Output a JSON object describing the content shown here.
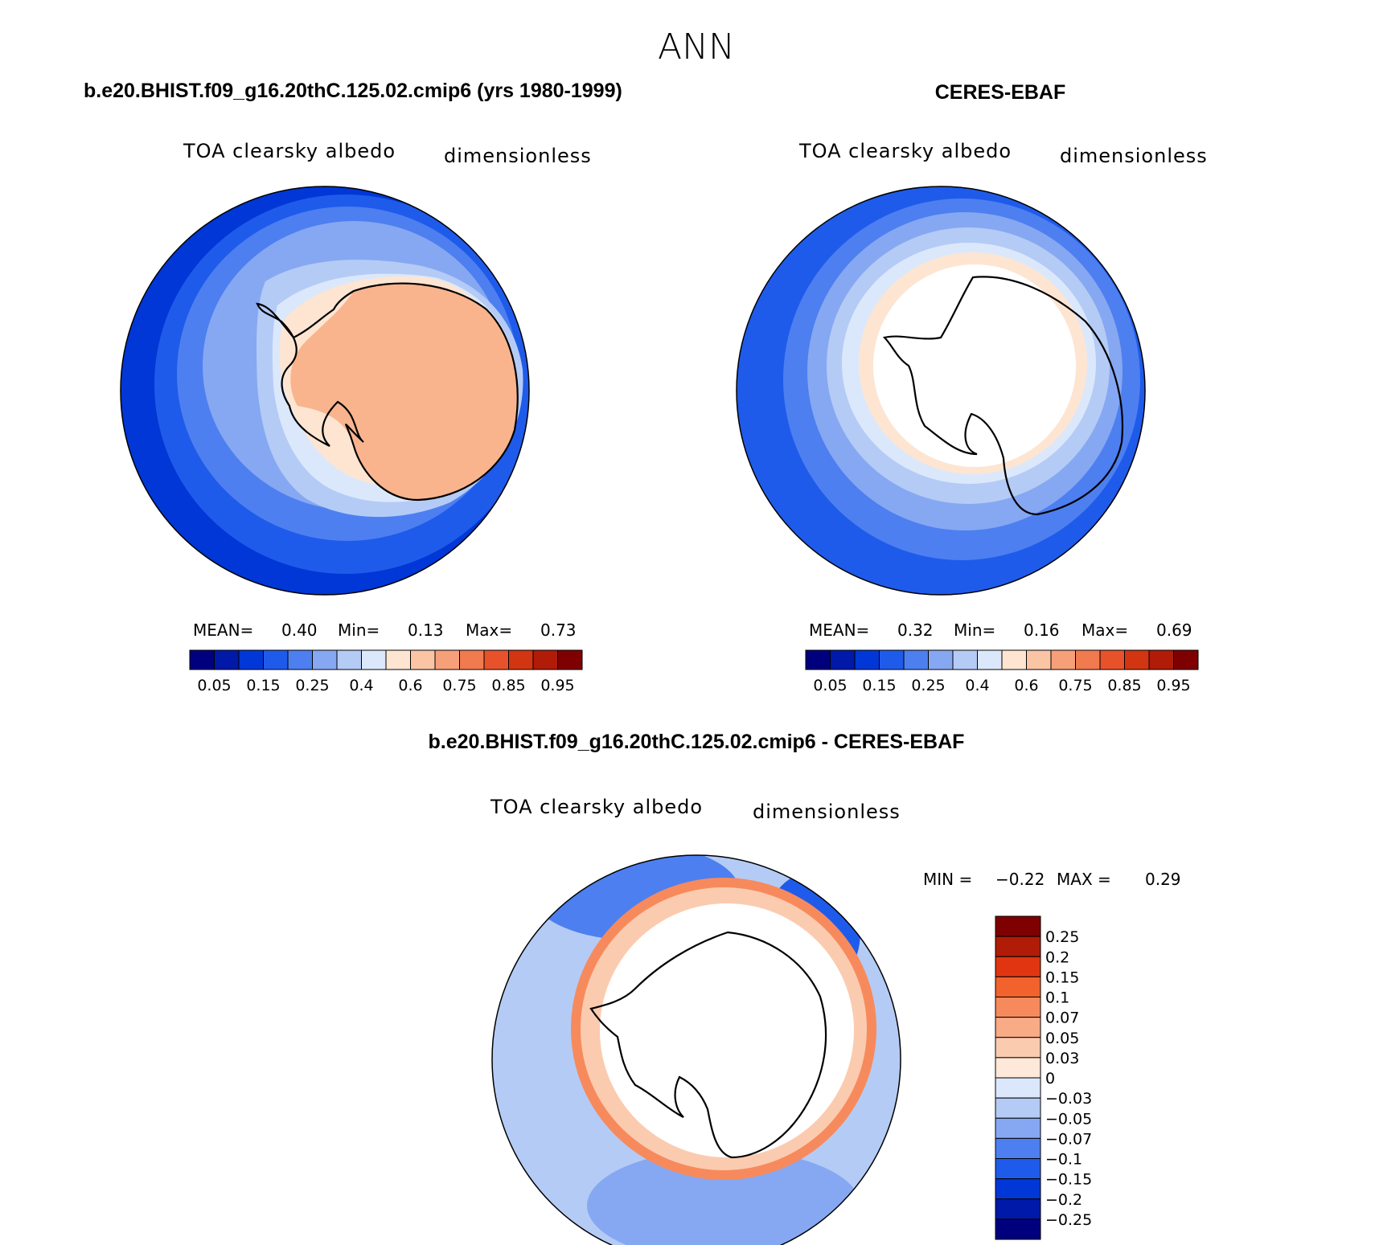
{
  "page_title": "ANN",
  "chart_data": [
    {
      "type": "heatmap",
      "projection": "south-polar-stereographic",
      "title": "b.e20.BHIST.f09_g16.20thC.125.02.cmip6 (yrs 1980-1999)",
      "variable": "TOA clearsky albedo",
      "units": "dimensionless",
      "stats": {
        "mean_label": "MEAN=",
        "mean": "0.40",
        "min_label": "Min=",
        "min": "0.13",
        "max_label": "Max=",
        "max": "0.73"
      },
      "colorbar_ticks": [
        "0.05",
        "0.15",
        "0.25",
        "0.4",
        "0.6",
        "0.75",
        "0.85",
        "0.95"
      ],
      "colorbar_colors": [
        "#00007f",
        "#0019a8",
        "#0037d6",
        "#1f5bea",
        "#4d7ff0",
        "#86a8f2",
        "#b4cbf6",
        "#dbe8fb",
        "#fde5d2",
        "#fbc4a5",
        "#f6a07a",
        "#f27a4f",
        "#e8522a",
        "#d23511",
        "#b01c07",
        "#7f0000"
      ]
    },
    {
      "type": "heatmap",
      "projection": "south-polar-stereographic",
      "title": "CERES-EBAF",
      "variable": "TOA clearsky albedo",
      "units": "dimensionless",
      "stats": {
        "mean_label": "MEAN=",
        "mean": "0.32",
        "min_label": "Min=",
        "min": "0.16",
        "max_label": "Max=",
        "max": "0.69"
      },
      "colorbar_ticks": [
        "0.05",
        "0.15",
        "0.25",
        "0.4",
        "0.6",
        "0.75",
        "0.85",
        "0.95"
      ],
      "colorbar_colors": [
        "#00007f",
        "#0019a8",
        "#0037d6",
        "#1f5bea",
        "#4d7ff0",
        "#86a8f2",
        "#b4cbf6",
        "#dbe8fb",
        "#fde5d2",
        "#fbc4a5",
        "#f6a07a",
        "#f27a4f",
        "#e8522a",
        "#d23511",
        "#b01c07",
        "#7f0000"
      ]
    },
    {
      "type": "heatmap",
      "projection": "south-polar-stereographic",
      "title": "b.e20.BHIST.f09_g16.20thC.125.02.cmip6 - CERES-EBAF",
      "variable": "TOA clearsky albedo",
      "units": "dimensionless",
      "stats": {
        "min_label": "MIN =",
        "min": "−0.22",
        "max_label": "MAX =",
        "max": "0.29"
      },
      "colorbar_ticks": [
        "0.25",
        "0.2",
        "0.15",
        "0.1",
        "0.07",
        "0.05",
        "0.03",
        "0",
        "−0.03",
        "−0.05",
        "−0.07",
        "−0.1",
        "−0.15",
        "−0.2",
        "−0.25"
      ],
      "colorbar_colors": [
        "#7f0000",
        "#b01c07",
        "#e03510",
        "#f2622d",
        "#f78a5c",
        "#f9ab86",
        "#fbcbb0",
        "#fde8da",
        "#dbe8fb",
        "#b4cbf6",
        "#86a8f2",
        "#4d7ff0",
        "#1f5bea",
        "#0037d6",
        "#0019a8",
        "#00007f"
      ]
    }
  ]
}
